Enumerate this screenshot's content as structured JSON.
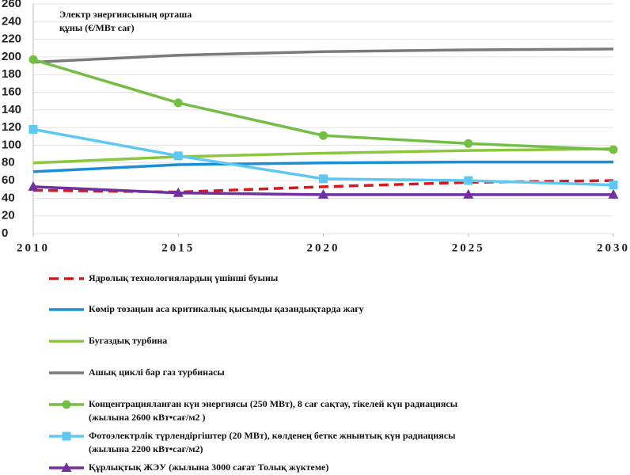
{
  "chart_data": {
    "type": "line",
    "title": "Электр энергиясының орташа құны (€/МВт сағ)",
    "x": [
      2010,
      2015,
      2020,
      2025,
      2030
    ],
    "xlim": [
      2010,
      2030
    ],
    "xticks": [
      2010,
      2015,
      2020,
      2025,
      2030
    ],
    "ylim": [
      0,
      260
    ],
    "yticks": [
      0,
      20,
      40,
      60,
      80,
      100,
      120,
      140,
      160,
      180,
      200,
      220,
      240,
      260
    ],
    "grid": true,
    "series": [
      {
        "name": "Ядролық технологиялардың үшінші буыны",
        "color": "#d7191c",
        "style": "dashed",
        "values": [
          49,
          47,
          53,
          58,
          60
        ]
      },
      {
        "name": "Көмір тозаңын аса критикалық қысымды қазандықтарда жағу",
        "color": "#1a8fd6",
        "style": "solid",
        "values": [
          70,
          78,
          80,
          81,
          81
        ]
      },
      {
        "name": "Бугаздық турбина",
        "color": "#8cc63f",
        "style": "solid",
        "values": [
          80,
          87,
          91,
          94,
          96
        ]
      },
      {
        "name": "Ашық циклі бар газ турбинасы",
        "color": "#7a7a7a",
        "style": "solid",
        "values": [
          194,
          202,
          206,
          208,
          209
        ]
      },
      {
        "name": "Концентрацияланған күн энергиясы (250 МВт), 8 сағ сақтау, тікелей күн радиациясы (жылына 2600 кВт•сағ/м2 )",
        "color": "#72bf44",
        "style": "solid",
        "marker": "circle",
        "values": [
          197,
          148,
          111,
          102,
          95
        ]
      },
      {
        "name": "Фотоэлектрлік түрлендіргіштер (20 МВт), көлденең бетке жнынтық күн радиациясы (жылына 2200 кВт•сағ/м2)",
        "color": "#5ec8f2",
        "style": "solid",
        "marker": "square",
        "values": [
          118,
          88,
          62,
          60,
          55
        ]
      },
      {
        "name": "Құрлықтық ЖЭУ (жылына 3000 сағат Толық жүктеме)",
        "color": "#7030a0",
        "style": "solid",
        "marker": "triangle",
        "values": [
          53,
          46,
          44,
          44,
          44
        ]
      }
    ]
  }
}
